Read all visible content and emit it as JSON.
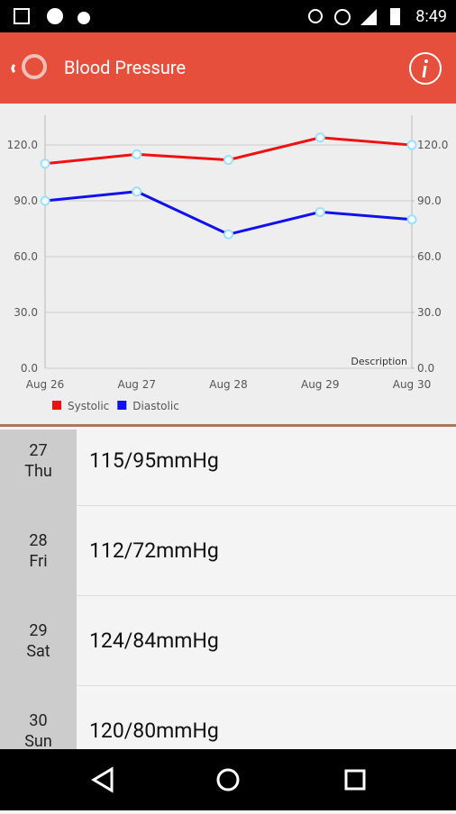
{
  "status_bar": {
    "time": "8:49"
  },
  "header": {
    "title": "Blood Pressure"
  },
  "chart_data": {
    "type": "line",
    "categories": [
      "Aug 26",
      "Aug 27",
      "Aug 28",
      "Aug 29",
      "Aug 30"
    ],
    "series": [
      {
        "name": "Systolic",
        "color": "#ee1111",
        "values": [
          110,
          115,
          112,
          124,
          120
        ]
      },
      {
        "name": "Diastolic",
        "color": "#1111ee",
        "values": [
          90,
          95,
          72,
          84,
          80
        ]
      }
    ],
    "ylim": [
      0,
      136
    ],
    "yticks": [
      {
        "value": 0,
        "label": "0.0"
      },
      {
        "value": 30,
        "label": "30.0"
      },
      {
        "value": 60,
        "label": "60.0"
      },
      {
        "value": 90,
        "label": "90.0"
      },
      {
        "value": 120,
        "label": "120.0"
      }
    ],
    "y2lim": [
      0,
      136
    ],
    "y2ticks": [
      {
        "value": 0,
        "label": "0.0"
      },
      {
        "value": 30,
        "label": "30.0"
      },
      {
        "value": 60,
        "label": "60.0"
      },
      {
        "value": 90,
        "label": "90.0"
      },
      {
        "value": 120,
        "label": "120.0"
      }
    ],
    "grid": true,
    "description": "Description"
  },
  "list": {
    "rows": [
      {
        "day": "27",
        "weekday": "Thu",
        "reading": "115/95mmHg"
      },
      {
        "day": "28",
        "weekday": "Fri",
        "reading": "112/72mmHg"
      },
      {
        "day": "29",
        "weekday": "Sat",
        "reading": "124/84mmHg"
      },
      {
        "day": "30",
        "weekday": "Sun",
        "reading": "120/80mmHg"
      }
    ]
  }
}
